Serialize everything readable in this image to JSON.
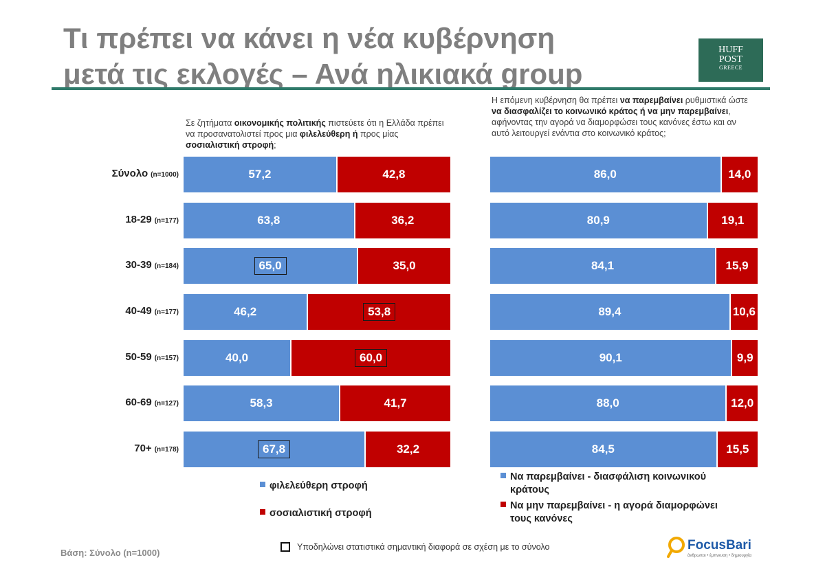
{
  "header": {
    "title_line1": "Τι πρέπει να κάνει η νέα κυβέρνηση",
    "title_line2": "μετά τις εκλογές – Ανά ηλικιακά group",
    "logo_line1": "HUFF",
    "logo_line2": "POST",
    "logo_line3": "GREECE"
  },
  "questions": {
    "left": {
      "p1": "Σε ζητήματα ",
      "b1": "οικονομικής πολιτικής",
      "p2": " πιστεύετε ότι η Ελλάδα πρέπει να προσανατολιστεί προς μια ",
      "b2": "φιλελεύθερη ή",
      "p3": " προς μίας ",
      "b3": "σοσιαλιστική στροφή",
      "p4": ";"
    },
    "right": {
      "p1": "Η επόμενη κυβέρνηση θα πρέπει ",
      "b1": "να παρεμβαίνει",
      "p2": " ρυθμιστικά ώστε ",
      "b2": "να διασφαλίζει το κοινωνικό κράτος ή να μην παρεμβαίνει",
      "p3": ", αφήνοντας την αγορά να διαμορφώσει τους κανόνες έστω και αν αυτό λειτουργεί ενάντια στο κοινωνικό κράτος;"
    }
  },
  "rows": [
    {
      "label": "Σύνολο",
      "n": "(n=1000)"
    },
    {
      "label": "18-29",
      "n": "(n=177)"
    },
    {
      "label": "30-39",
      "n": "(n=184)"
    },
    {
      "label": "40-49",
      "n": "(n=177)"
    },
    {
      "label": "50-59",
      "n": "(n=157)"
    },
    {
      "label": "60-69",
      "n": "(n=127)"
    },
    {
      "label": "70+",
      "n": "(n=178)"
    }
  ],
  "colors": {
    "blue": "#5b8fd4",
    "red": "#c00000"
  },
  "chart_data": [
    {
      "type": "bar",
      "stacked": true,
      "orientation": "horizontal",
      "categories": [
        "Σύνολο",
        "18-29",
        "30-39",
        "40-49",
        "50-59",
        "60-69",
        "70+"
      ],
      "series": [
        {
          "name": "φιλελεύθερη στροφή",
          "values": [
            57.2,
            63.8,
            65.0,
            46.2,
            40.0,
            58.3,
            67.8
          ],
          "labels": [
            "57,2",
            "63,8",
            "65,0",
            "46,2",
            "40,0",
            "58,3",
            "67,8"
          ],
          "significant": [
            false,
            false,
            true,
            false,
            false,
            false,
            true
          ]
        },
        {
          "name": "σοσιαλιστική στροφή",
          "values": [
            42.8,
            36.2,
            35.0,
            53.8,
            60.0,
            41.7,
            32.2
          ],
          "labels": [
            "42,8",
            "36,2",
            "35,0",
            "53,8",
            "60,0",
            "41,7",
            "32,2"
          ],
          "significant": [
            false,
            false,
            false,
            true,
            true,
            false,
            false
          ]
        }
      ],
      "xlim": [
        0,
        100
      ]
    },
    {
      "type": "bar",
      "stacked": true,
      "orientation": "horizontal",
      "categories": [
        "Σύνολο",
        "18-29",
        "30-39",
        "40-49",
        "50-59",
        "60-69",
        "70+"
      ],
      "series": [
        {
          "name": "Να παρεμβαίνει - διασφάλιση κοινωνικού κράτους",
          "values": [
            86.0,
            80.9,
            84.1,
            89.4,
            90.1,
            88.0,
            84.5
          ],
          "labels": [
            "86,0",
            "80,9",
            "84,1",
            "89,4",
            "90,1",
            "88,0",
            "84,5"
          ],
          "significant": [
            false,
            false,
            false,
            false,
            false,
            false,
            false
          ]
        },
        {
          "name": "Να μην παρεμβαίνει - η αγορά διαμορφώνει τους κανόνες",
          "values": [
            14.0,
            19.1,
            15.9,
            10.6,
            9.9,
            12.0,
            15.5
          ],
          "labels": [
            "14,0",
            "19,1",
            "15,9",
            "10,6",
            "9,9",
            "12,0",
            "15,5"
          ],
          "significant": [
            false,
            false,
            false,
            false,
            false,
            false,
            false
          ]
        }
      ],
      "xlim": [
        0,
        100
      ]
    }
  ],
  "legend": {
    "left_1": "φιλελεύθερη στροφή",
    "left_2": "σοσιαλιστική στροφή",
    "right_1a": "Να παρεμβαίνει - διασφάλιση κοινωνικού",
    "right_1b": "κράτους",
    "right_2a": "Να μην παρεμβαίνει - η αγορά διαμορφώνει",
    "right_2b": "τους κανόνες"
  },
  "footer": {
    "base": "Βάση: Σύνολο (n=1000)",
    "note": "Υποδηλώνει στατιστικά σημαντική διαφορά σε σχέση με το σύνολο",
    "brand_word": "FocusBari",
    "brand_tag": "άνθρωποι • έμπνευση • δημιουργία"
  }
}
